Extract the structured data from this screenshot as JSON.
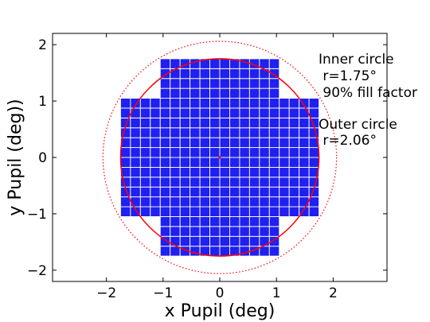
{
  "chart_data": {
    "type": "scatter",
    "xlabel": "x Pupil (deg)",
    "ylabel": "y Pupil (deg))",
    "xlim": [
      -2.95,
      2.95
    ],
    "ylim": [
      -2.2,
      2.2
    ],
    "xticks": [
      -2,
      -1,
      0,
      1,
      2
    ],
    "yticks": [
      -2,
      -1,
      0,
      1,
      2
    ],
    "xtick_labels": [
      "−2",
      "−1",
      "0",
      "1",
      "2"
    ],
    "ytick_labels": [
      "−2",
      "−1",
      "0",
      "1",
      "2"
    ],
    "grid": false,
    "focal_plane": {
      "color": "#2020f0",
      "edge_color": "#ffffff",
      "tile_size_deg": 0.175,
      "regions": [
        {
          "name": "center-column",
          "x": [
            -1.05,
            1.05
          ],
          "y": [
            -1.75,
            1.75
          ]
        },
        {
          "name": "wide-band",
          "x": [
            -1.75,
            1.75
          ],
          "y": [
            -1.05,
            1.05
          ]
        }
      ]
    },
    "center_marker": {
      "x": 0,
      "y": 0,
      "color": "#ff0000"
    },
    "circles": [
      {
        "name": "inner",
        "center": [
          0,
          0
        ],
        "r": 1.75,
        "style": "solid",
        "color": "#ff0000"
      },
      {
        "name": "outer",
        "center": [
          0,
          0
        ],
        "r": 2.06,
        "style": "dotted",
        "color": "#ff0000"
      }
    ],
    "annotations": {
      "inner_line1": "Inner circle",
      "inner_line2": " r=1.75°",
      "inner_line3": " 90% fill factor",
      "outer_line1": "Outer circle",
      "outer_line2": " r=2.06°"
    }
  }
}
